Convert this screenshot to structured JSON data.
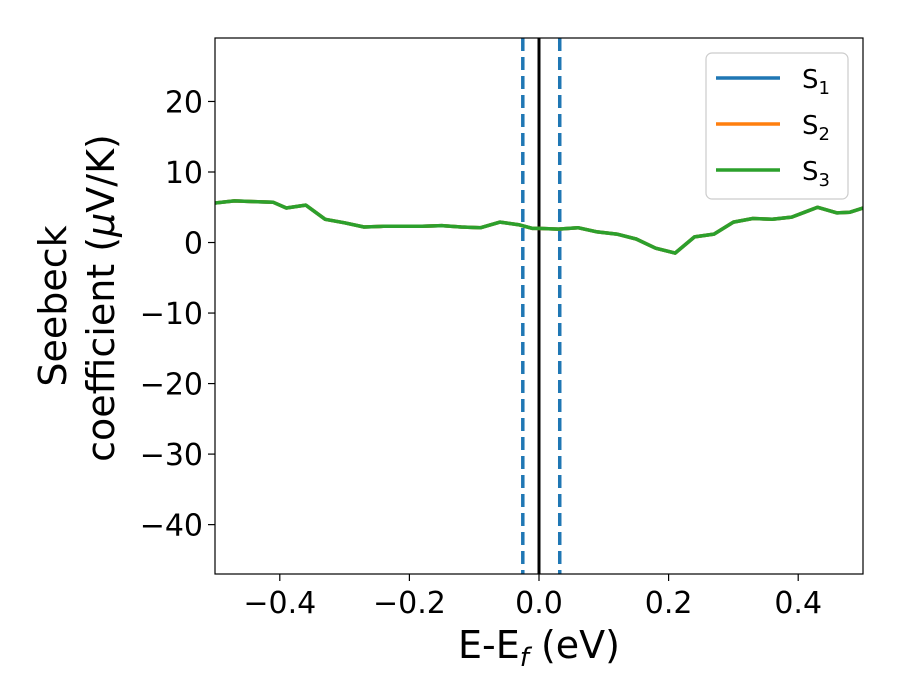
{
  "chart_data": {
    "type": "line",
    "xlabel": {
      "main": "E-E",
      "sub": "f",
      "unit": " (eV)"
    },
    "ylabel": {
      "line1": "Seebeck",
      "line2_prefix": "coefficient  (",
      "mu": "μ",
      "line2_suffix": "V/K)"
    },
    "xlim": [
      -0.5,
      0.5
    ],
    "ylim": [
      -47,
      29
    ],
    "xticks": [
      -0.4,
      -0.2,
      0.0,
      0.2,
      0.4
    ],
    "xtick_labels": [
      "−0.4",
      "−0.2",
      "0.0",
      "0.2",
      "0.4"
    ],
    "yticks": [
      20,
      10,
      0,
      -10,
      -20,
      -30,
      -40
    ],
    "ytick_labels": [
      "20",
      "10",
      "0",
      "−10",
      "−20",
      "−30",
      "−40"
    ],
    "grid": false,
    "legend_position": "top-right",
    "vlines": [
      {
        "x": 0.0,
        "style": "solid",
        "color": "#000000"
      },
      {
        "x": -0.025,
        "style": "dashed",
        "color": "#1f77b4"
      },
      {
        "x": 0.032,
        "style": "dashed",
        "color": "#1f77b4"
      }
    ],
    "x": [
      -0.5,
      -0.47,
      -0.44,
      -0.41,
      -0.39,
      -0.36,
      -0.33,
      -0.3,
      -0.27,
      -0.24,
      -0.21,
      -0.18,
      -0.15,
      -0.12,
      -0.09,
      -0.06,
      -0.03,
      -0.01,
      0.0,
      0.03,
      0.06,
      0.09,
      0.12,
      0.15,
      0.18,
      0.21,
      0.24,
      0.27,
      0.3,
      0.33,
      0.36,
      0.39,
      0.41,
      0.43,
      0.46,
      0.48,
      0.5
    ],
    "series": [
      {
        "name": "S",
        "sub": "1",
        "color": "#1f77b4",
        "values": [
          5.6,
          5.9,
          5.8,
          5.7,
          4.9,
          5.3,
          3.3,
          2.8,
          2.2,
          2.3,
          2.3,
          2.3,
          2.4,
          2.2,
          2.1,
          2.9,
          2.5,
          2.0,
          2.0,
          1.9,
          2.1,
          1.5,
          1.2,
          0.5,
          -0.8,
          -1.5,
          0.8,
          1.2,
          2.9,
          3.4,
          3.3,
          3.6,
          4.3,
          5.0,
          4.2,
          4.3,
          4.9
        ]
      },
      {
        "name": "S",
        "sub": "2",
        "color": "#ff7f0e",
        "values": [
          5.6,
          5.9,
          5.8,
          5.7,
          4.9,
          5.3,
          3.3,
          2.8,
          2.2,
          2.3,
          2.3,
          2.3,
          2.4,
          2.2,
          2.1,
          2.9,
          2.5,
          2.0,
          2.0,
          1.9,
          2.1,
          1.5,
          1.2,
          0.5,
          -0.8,
          -1.5,
          0.8,
          1.2,
          2.9,
          3.4,
          3.3,
          3.6,
          4.3,
          5.0,
          4.2,
          4.3,
          4.9
        ]
      },
      {
        "name": "S",
        "sub": "3",
        "color": "#2ca02c",
        "values": [
          5.6,
          5.9,
          5.8,
          5.7,
          4.9,
          5.3,
          3.3,
          2.8,
          2.2,
          2.3,
          2.3,
          2.3,
          2.4,
          2.2,
          2.1,
          2.9,
          2.5,
          2.0,
          2.0,
          1.9,
          2.1,
          1.5,
          1.2,
          0.5,
          -0.8,
          -1.5,
          0.8,
          1.2,
          2.9,
          3.4,
          3.3,
          3.6,
          4.3,
          5.0,
          4.2,
          4.3,
          4.9
        ]
      }
    ]
  }
}
